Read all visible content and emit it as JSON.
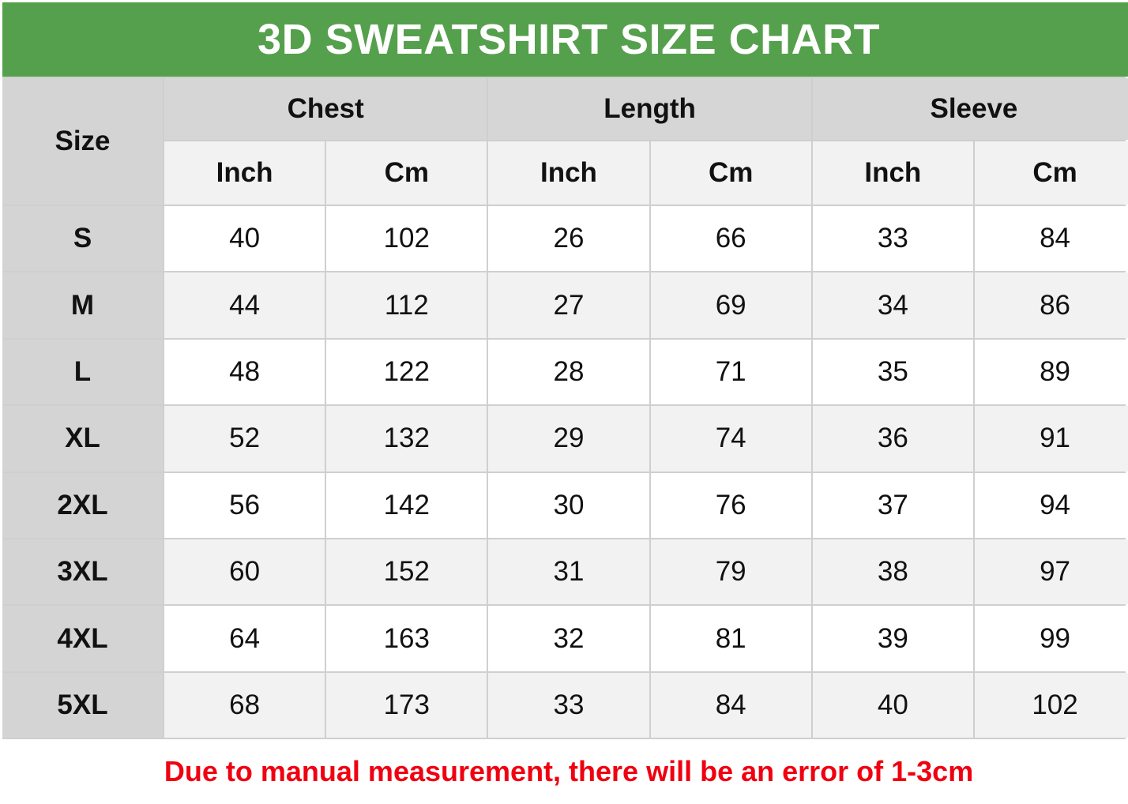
{
  "title": "3D SWEATSHIRT SIZE CHART",
  "colors": {
    "title_bg": "#55a04c",
    "note_text": "#f00010"
  },
  "chart_data": {
    "type": "table",
    "title": "3D SWEATSHIRT SIZE CHART",
    "size_header": "Size",
    "groups": [
      "Chest",
      "Length",
      "Sleeve"
    ],
    "units": [
      "Inch",
      "Cm",
      "Inch",
      "Cm",
      "Inch",
      "Cm"
    ],
    "rows": [
      {
        "size": "S",
        "values": [
          "40",
          "102",
          "26",
          "66",
          "33",
          "84"
        ]
      },
      {
        "size": "M",
        "values": [
          "44",
          "112",
          "27",
          "69",
          "34",
          "86"
        ]
      },
      {
        "size": "L",
        "values": [
          "48",
          "122",
          "28",
          "71",
          "35",
          "89"
        ]
      },
      {
        "size": "XL",
        "values": [
          "52",
          "132",
          "29",
          "74",
          "36",
          "91"
        ]
      },
      {
        "size": "2XL",
        "values": [
          "56",
          "142",
          "30",
          "76",
          "37",
          "94"
        ]
      },
      {
        "size": "3XL",
        "values": [
          "60",
          "152",
          "31",
          "79",
          "38",
          "97"
        ]
      },
      {
        "size": "4XL",
        "values": [
          "64",
          "163",
          "32",
          "81",
          "39",
          "99"
        ]
      },
      {
        "size": "5XL",
        "values": [
          "68",
          "173",
          "33",
          "84",
          "40",
          "102"
        ]
      }
    ],
    "note": "Due to manual measurement, there will be an error of 1-3cm"
  }
}
